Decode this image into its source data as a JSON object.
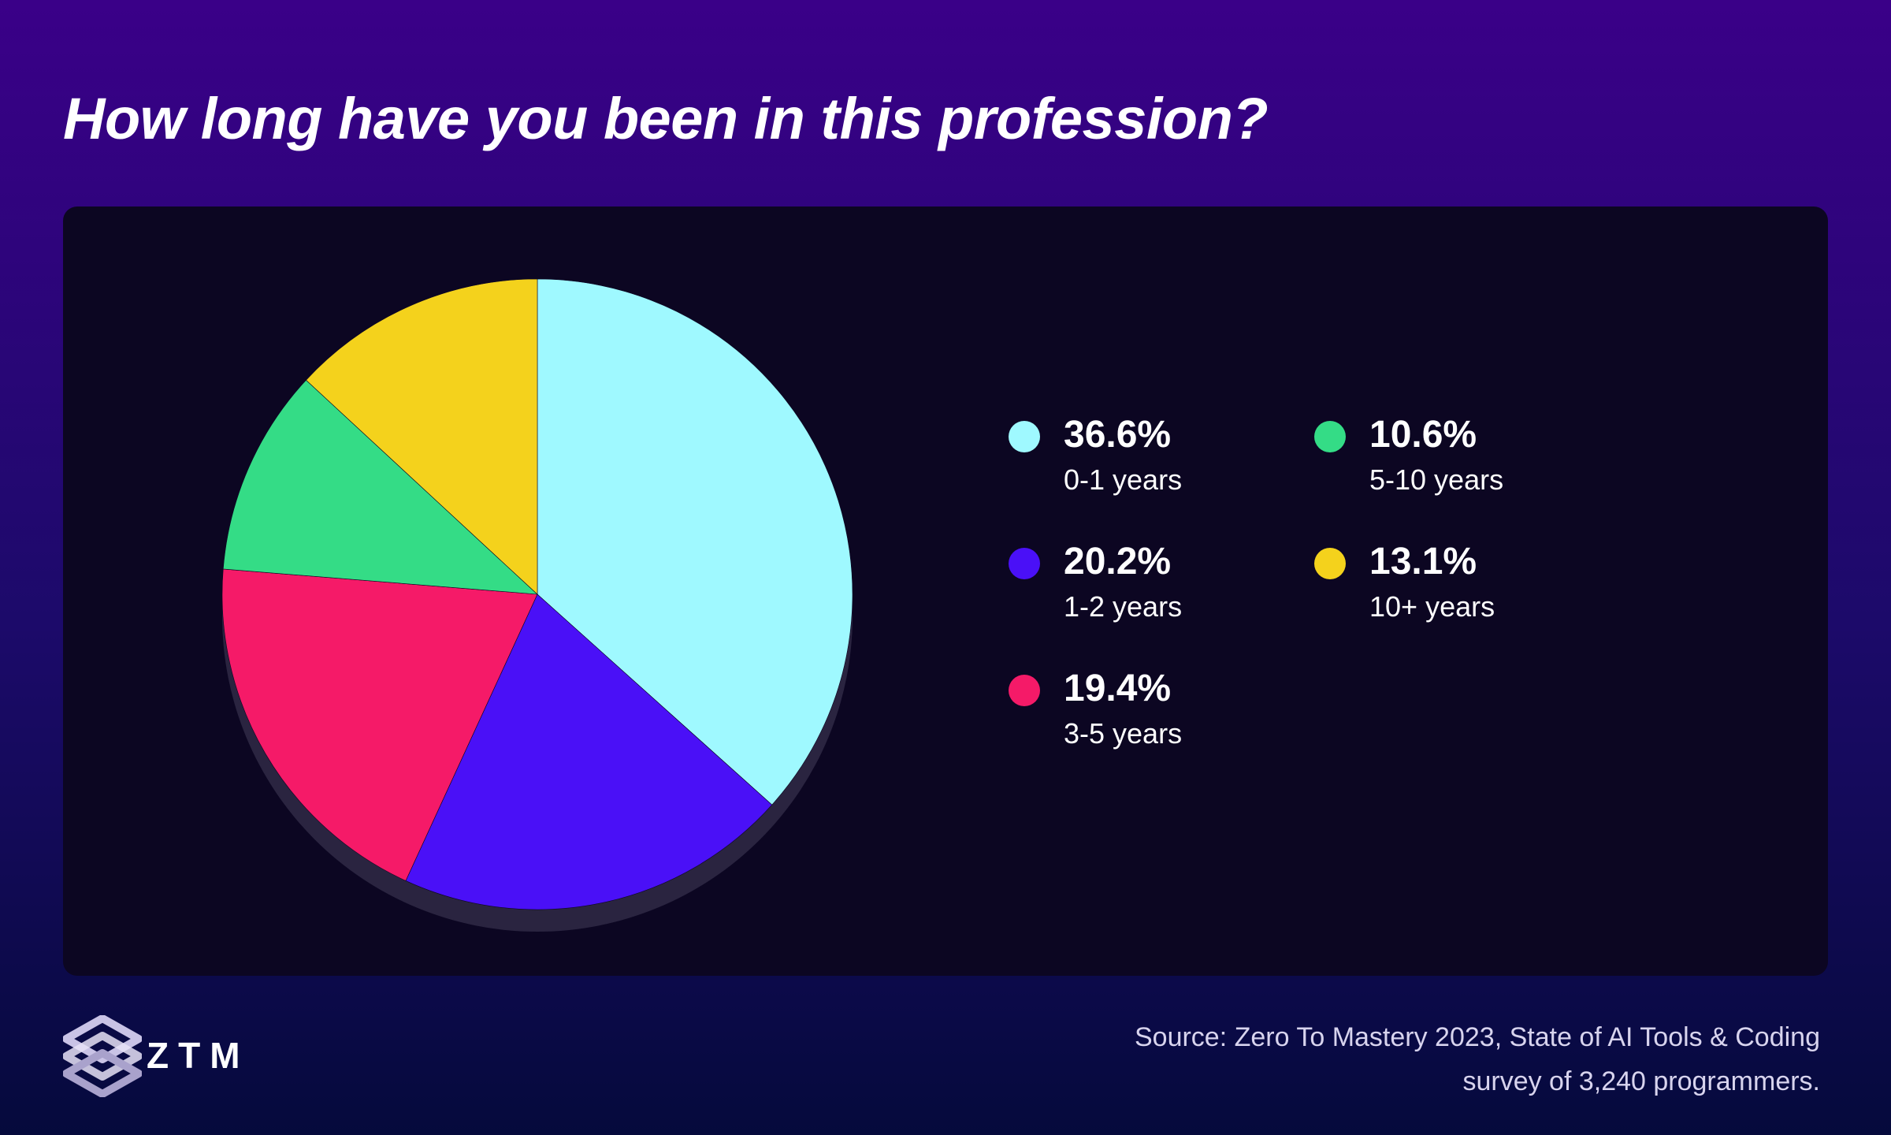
{
  "title": "How long have you been in this profession?",
  "chart_data": {
    "type": "pie",
    "title": "How long have you been in this profession?",
    "slices": [
      {
        "label": "0-1 years",
        "value": 36.6,
        "display": "36.6%",
        "color": "#9ff9ff"
      },
      {
        "label": "1-2 years",
        "value": 20.2,
        "display": "20.2%",
        "color": "#4a10f7"
      },
      {
        "label": "3-5 years",
        "value": 19.4,
        "display": "19.4%",
        "color": "#f51a68"
      },
      {
        "label": "5-10 years",
        "value": 10.6,
        "display": "10.6%",
        "color": "#34dc86"
      },
      {
        "label": "10+ years",
        "value": 13.1,
        "display": "13.1%",
        "color": "#f4d21c"
      }
    ],
    "legend_placement": "right"
  },
  "colors": {
    "background_top": "#3a0088",
    "background_bottom": "#050a3c",
    "panel": "#0c0622",
    "pie_shadow": "#2a2440"
  },
  "logo": {
    "text": "ZTM",
    "icon": "ztm-logo-icon"
  },
  "source": {
    "line1": "Source: Zero To Mastery 2023, State of AI Tools & Coding",
    "line2": "survey of 3,240 programmers."
  }
}
